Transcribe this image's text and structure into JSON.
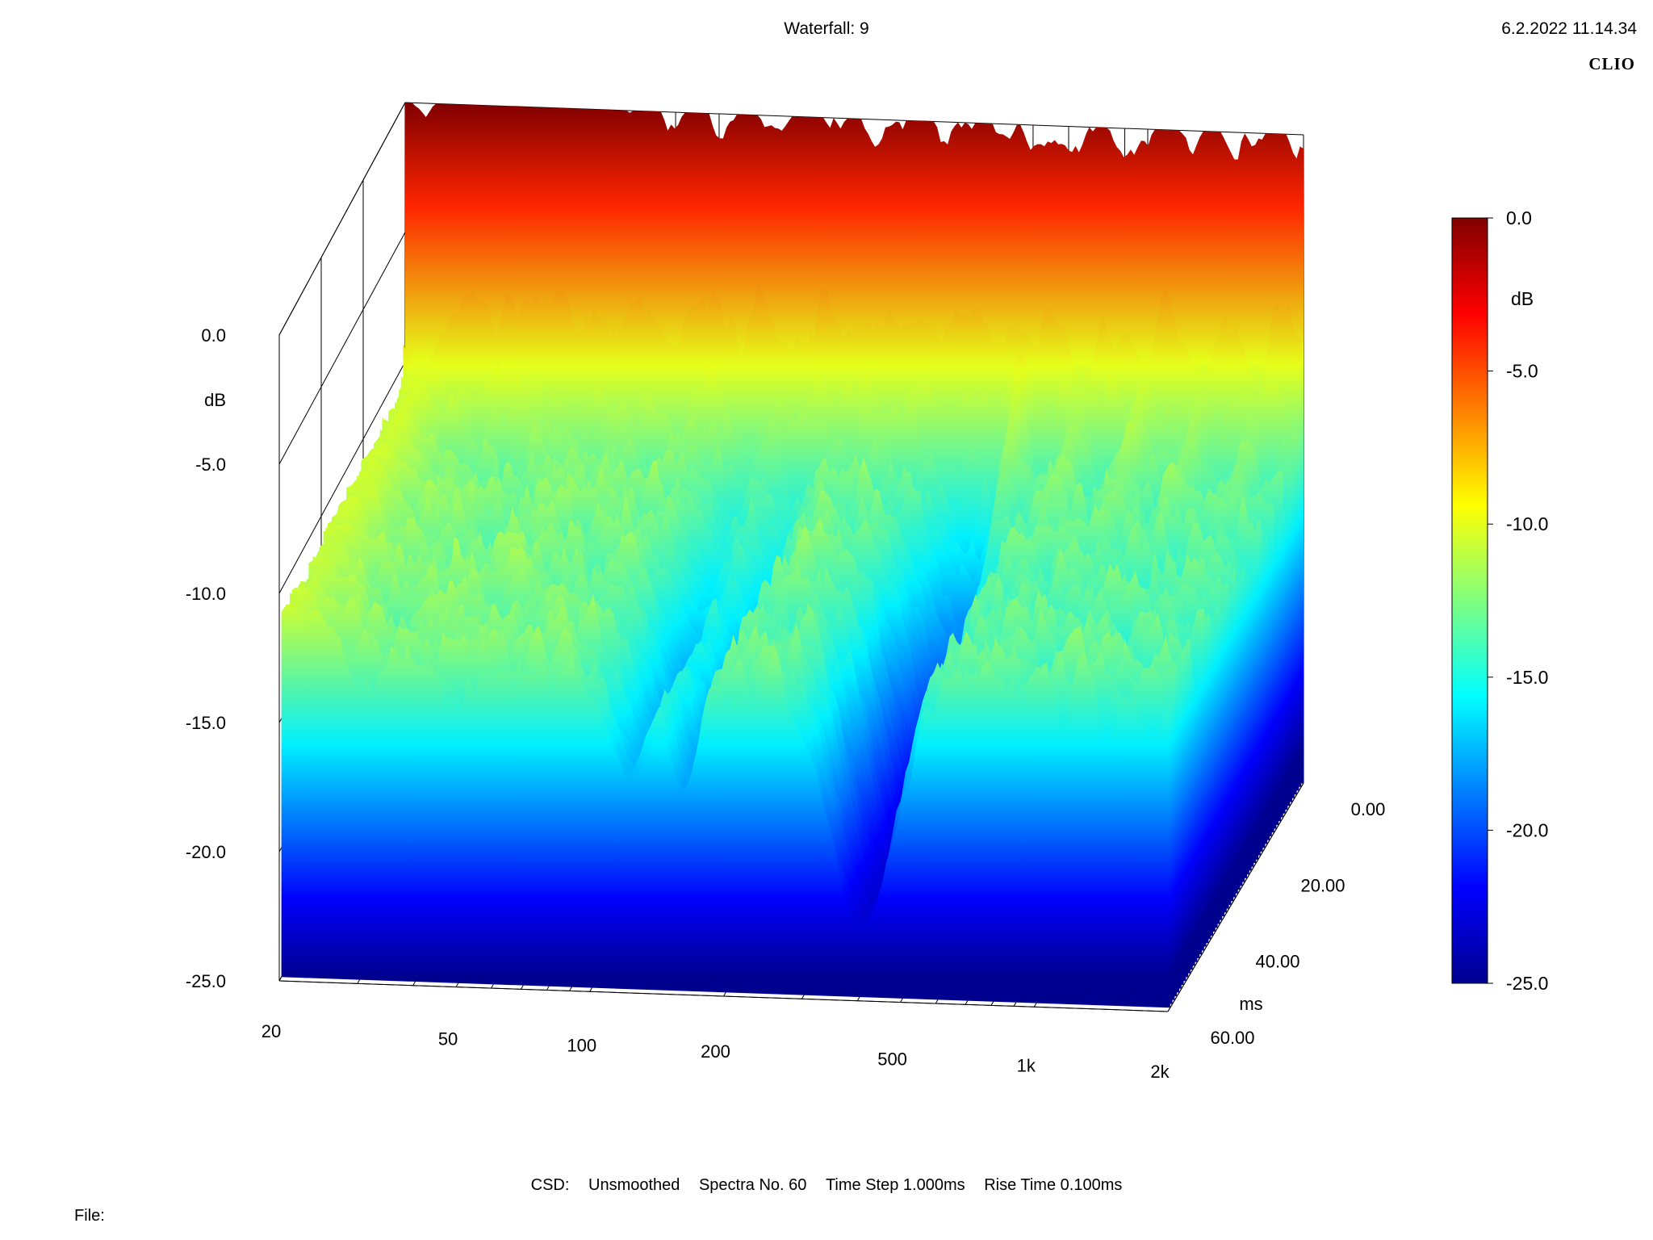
{
  "header": {
    "title": "Waterfall: 9",
    "timestamp": "6.2.2022 11.14.34",
    "brand": "CLIO"
  },
  "footer": {
    "mode": "CSD:",
    "smoothing": "Unsmoothed",
    "spectra": "Spectra No. 60",
    "time_step": "Time Step 1.000ms",
    "rise_time": "Rise Time 0.100ms",
    "file_label": "File:"
  },
  "chart_data": {
    "type": "waterfall",
    "title": "Waterfall: 9",
    "x_axis": {
      "scale": "log",
      "range": [
        20,
        2000
      ],
      "ticks": [
        20,
        50,
        100,
        200,
        500,
        1000,
        2000
      ],
      "tick_labels": [
        "20",
        "50",
        "100",
        "200",
        "500",
        "1k",
        "2k"
      ]
    },
    "z_axis": {
      "label": "ms",
      "range": [
        0,
        60
      ],
      "ticks": [
        0,
        20,
        40,
        60
      ],
      "tick_labels": [
        "0.00",
        "20.00",
        "40.00",
        "60.00"
      ]
    },
    "y_axis": {
      "label": "dB",
      "range": [
        -25,
        0
      ],
      "ticks": [
        0,
        -5,
        -10,
        -15,
        -20,
        -25
      ],
      "tick_labels": [
        "0.0",
        "-5.0",
        "-10.0",
        "-15.0",
        "-20.0",
        "-25.0"
      ]
    },
    "colorbar": {
      "label": "dB",
      "range": [
        -25,
        0
      ],
      "tick_labels": [
        "0.0",
        "-5.0",
        "-10.0",
        "-15.0",
        "-20.0",
        "-25.0"
      ]
    },
    "grid": true,
    "first_slice_db": 0,
    "late_floor_db": -13,
    "slices": 60,
    "resonances": [
      {
        "freq_hz": 480,
        "peak_db": -7.5,
        "decay_ms": 35
      },
      {
        "freq_hz": 650,
        "peak_db": -10,
        "decay_ms": 26
      },
      {
        "freq_hz": 900,
        "peak_db": -9,
        "decay_ms": 28
      },
      {
        "freq_hz": 1200,
        "peak_db": -9.5,
        "decay_ms": 25
      },
      {
        "freq_hz": 1600,
        "peak_db": -10,
        "decay_ms": 22
      },
      {
        "freq_hz": 22,
        "peak_db": -10.5,
        "decay_ms": 55
      }
    ],
    "notches": [
      {
        "freq_hz": 400,
        "min_db": -24,
        "width_ratio": 1.25
      },
      {
        "freq_hz": 120,
        "min_db": -17.5,
        "width_ratio": 1.15
      },
      {
        "freq_hz": 160,
        "min_db": -18,
        "width_ratio": 1.12
      }
    ]
  }
}
